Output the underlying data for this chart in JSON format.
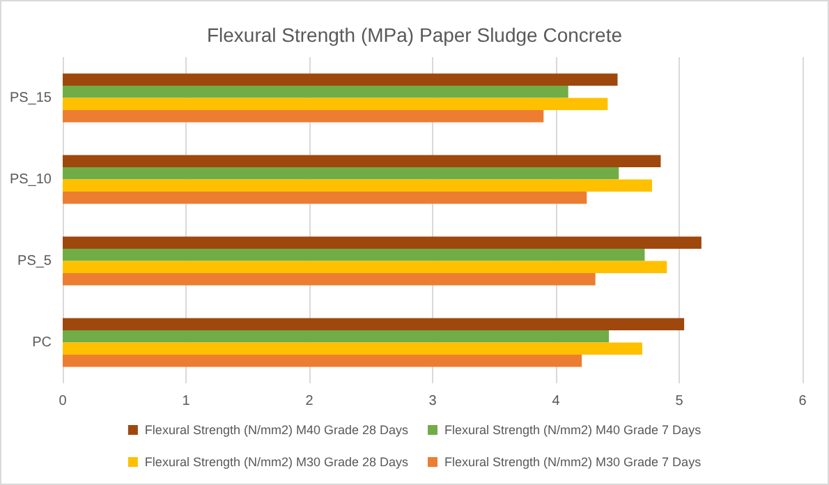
{
  "chart_data": {
    "type": "bar",
    "orientation": "horizontal",
    "title": "Flexural Strength (MPa) Paper Sludge Concrete",
    "categories": [
      "PS_15",
      "PS_10",
      "PS_5",
      "PC"
    ],
    "series": [
      {
        "name": "Flexural Strength (N/mm2) M40 Grade 28 Days",
        "color": "#9e480e",
        "values": [
          4.5,
          4.85,
          5.18,
          5.04
        ]
      },
      {
        "name": "Flexural Strength (N/mm2) M40 Grade 7 Days",
        "color": "#70ad47",
        "values": [
          4.1,
          4.51,
          4.72,
          4.43
        ]
      },
      {
        "name": "Flexural Strength (N/mm2) M30 Grade 28 Days",
        "color": "#ffc000",
        "values": [
          4.42,
          4.78,
          4.9,
          4.7
        ]
      },
      {
        "name": "Flexural Strength (N/mm2) M30 Grade 7 Days",
        "color": "#ed7d31",
        "values": [
          3.9,
          4.25,
          4.32,
          4.21
        ]
      }
    ],
    "xlim": [
      0,
      6
    ],
    "xticks": [
      0,
      1,
      2,
      3,
      4,
      5,
      6
    ],
    "grid": "x",
    "legend": "bottom"
  }
}
